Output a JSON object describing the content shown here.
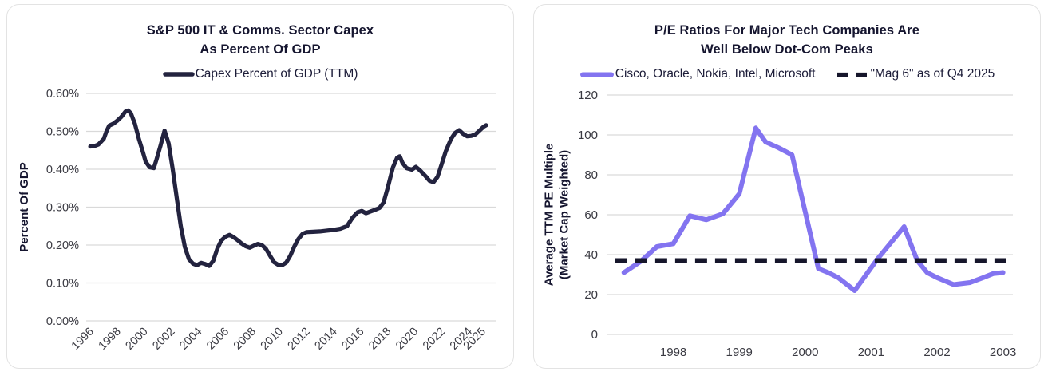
{
  "page": {
    "background": "#ffffff",
    "card_border": "#e3e3e3",
    "gridline_color": "#d9d9d9",
    "tick_text_color": "#3a3a42",
    "title_text_color": "#15152f"
  },
  "chart_data": [
    {
      "type": "line",
      "title": "S&P 500 IT & Comms. Sector Capex As Percent Of GDP",
      "title_lines": [
        "S&P 500 IT & Comms. Sector Capex",
        "As Percent Of GDP"
      ],
      "xlabel": "",
      "ylabel": "Percent Of GDP",
      "ylabel_lines": [
        "Percent Of GDP"
      ],
      "grid": "horizontal",
      "legend_position": "top-center",
      "xlim": [
        1995.7,
        2026.0
      ],
      "ylim": [
        0,
        0.6
      ],
      "yticks": [
        {
          "v": 0.0,
          "label": "0.00%"
        },
        {
          "v": 0.1,
          "label": "0.10%"
        },
        {
          "v": 0.2,
          "label": "0.20%"
        },
        {
          "v": 0.3,
          "label": "0.30%"
        },
        {
          "v": 0.4,
          "label": "0.40%"
        },
        {
          "v": 0.5,
          "label": "0.50%"
        },
        {
          "v": 0.6,
          "label": "0.60%"
        }
      ],
      "xticks": [
        1996,
        1998,
        2000,
        2002,
        2004,
        2006,
        2008,
        2010,
        2012,
        2014,
        2016,
        2018,
        2020,
        2022,
        2024,
        2025
      ],
      "series": [
        {
          "name": "Capex Percent of GDP (TTM)",
          "color": "#23233f",
          "dash": null,
          "points": [
            [
              1996.0,
              0.46
            ],
            [
              1996.3,
              0.461
            ],
            [
              1996.6,
              0.465
            ],
            [
              1997.0,
              0.48
            ],
            [
              1997.2,
              0.5
            ],
            [
              1997.4,
              0.515
            ],
            [
              1997.7,
              0.52
            ],
            [
              1998.0,
              0.528
            ],
            [
              1998.3,
              0.538
            ],
            [
              1998.6,
              0.552
            ],
            [
              1998.8,
              0.555
            ],
            [
              1999.0,
              0.548
            ],
            [
              1999.3,
              0.52
            ],
            [
              1999.6,
              0.48
            ],
            [
              1999.9,
              0.445
            ],
            [
              2000.1,
              0.42
            ],
            [
              2000.4,
              0.405
            ],
            [
              2000.7,
              0.403
            ],
            [
              2000.9,
              0.425
            ],
            [
              2001.2,
              0.462
            ],
            [
              2001.5,
              0.502
            ],
            [
              2001.8,
              0.468
            ],
            [
              2002.1,
              0.4
            ],
            [
              2002.4,
              0.325
            ],
            [
              2002.7,
              0.25
            ],
            [
              2003.0,
              0.195
            ],
            [
              2003.3,
              0.163
            ],
            [
              2003.6,
              0.151
            ],
            [
              2003.9,
              0.147
            ],
            [
              2004.2,
              0.153
            ],
            [
              2004.5,
              0.15
            ],
            [
              2004.8,
              0.145
            ],
            [
              2005.1,
              0.158
            ],
            [
              2005.4,
              0.19
            ],
            [
              2005.7,
              0.212
            ],
            [
              2006.0,
              0.222
            ],
            [
              2006.3,
              0.227
            ],
            [
              2006.6,
              0.221
            ],
            [
              2006.9,
              0.213
            ],
            [
              2007.2,
              0.204
            ],
            [
              2007.5,
              0.197
            ],
            [
              2007.8,
              0.193
            ],
            [
              2008.1,
              0.198
            ],
            [
              2008.4,
              0.203
            ],
            [
              2008.7,
              0.2
            ],
            [
              2009.0,
              0.19
            ],
            [
              2009.3,
              0.172
            ],
            [
              2009.6,
              0.155
            ],
            [
              2009.9,
              0.148
            ],
            [
              2010.2,
              0.147
            ],
            [
              2010.5,
              0.154
            ],
            [
              2010.8,
              0.172
            ],
            [
              2011.1,
              0.196
            ],
            [
              2011.4,
              0.216
            ],
            [
              2011.7,
              0.229
            ],
            [
              2012.0,
              0.234
            ],
            [
              2012.5,
              0.235
            ],
            [
              2013.0,
              0.236
            ],
            [
              2013.5,
              0.238
            ],
            [
              2014.0,
              0.24
            ],
            [
              2014.5,
              0.243
            ],
            [
              2015.0,
              0.25
            ],
            [
              2015.4,
              0.272
            ],
            [
              2015.8,
              0.287
            ],
            [
              2016.1,
              0.29
            ],
            [
              2016.4,
              0.284
            ],
            [
              2016.7,
              0.288
            ],
            [
              2017.0,
              0.292
            ],
            [
              2017.4,
              0.298
            ],
            [
              2017.7,
              0.312
            ],
            [
              2018.0,
              0.35
            ],
            [
              2018.4,
              0.405
            ],
            [
              2018.7,
              0.43
            ],
            [
              2018.9,
              0.434
            ],
            [
              2019.1,
              0.417
            ],
            [
              2019.4,
              0.403
            ],
            [
              2019.8,
              0.399
            ],
            [
              2020.1,
              0.406
            ],
            [
              2020.4,
              0.397
            ],
            [
              2020.8,
              0.382
            ],
            [
              2021.1,
              0.37
            ],
            [
              2021.4,
              0.366
            ],
            [
              2021.7,
              0.38
            ],
            [
              2022.0,
              0.413
            ],
            [
              2022.3,
              0.447
            ],
            [
              2022.7,
              0.48
            ],
            [
              2023.0,
              0.496
            ],
            [
              2023.3,
              0.503
            ],
            [
              2023.6,
              0.493
            ],
            [
              2023.9,
              0.487
            ],
            [
              2024.2,
              0.488
            ],
            [
              2024.5,
              0.492
            ],
            [
              2024.8,
              0.502
            ],
            [
              2025.1,
              0.512
            ],
            [
              2025.3,
              0.516
            ]
          ]
        }
      ]
    },
    {
      "type": "line",
      "title": "P/E Ratios For Major Tech Companies Are Well Below Dot-Com Peaks",
      "title_lines": [
        "P/E Ratios For Major Tech Companies Are",
        "Well Below Dot-Com Peaks"
      ],
      "xlabel": "",
      "ylabel": "Average TTM PE Multiple (Market Cap Weighted)",
      "ylabel_lines": [
        "Average TTM PE Multiple",
        "(Market Cap Weighted)"
      ],
      "grid": "horizontal",
      "legend_position": "top-center",
      "xlim": [
        1997.0,
        2003.15
      ],
      "ylim": [
        0,
        120
      ],
      "yticks": [
        {
          "v": 0,
          "label": "0"
        },
        {
          "v": 20,
          "label": "20"
        },
        {
          "v": 40,
          "label": "40"
        },
        {
          "v": 60,
          "label": "60"
        },
        {
          "v": 80,
          "label": "80"
        },
        {
          "v": 100,
          "label": "100"
        },
        {
          "v": 120,
          "label": "120"
        }
      ],
      "xticks": [
        1998,
        1999,
        2000,
        2001,
        2002,
        2003
      ],
      "series": [
        {
          "name": "Cisco, Oracle, Nokia, Intel, Microsoft",
          "color": "#8374f0",
          "dash": null,
          "points": [
            [
              1997.25,
              31
            ],
            [
              1997.5,
              36.5
            ],
            [
              1997.75,
              44
            ],
            [
              1998.0,
              45.5
            ],
            [
              1998.25,
              59.5
            ],
            [
              1998.5,
              57.5
            ],
            [
              1998.75,
              60.5
            ],
            [
              1999.0,
              70.5
            ],
            [
              1999.25,
              103.5
            ],
            [
              1999.4,
              96.5
            ],
            [
              1999.6,
              93.5
            ],
            [
              1999.8,
              90
            ],
            [
              2000.2,
              33
            ],
            [
              2000.35,
              31
            ],
            [
              2000.5,
              28.5
            ],
            [
              2000.75,
              22
            ],
            [
              2001.1,
              38
            ],
            [
              2001.5,
              54
            ],
            [
              2001.7,
              37
            ],
            [
              2001.85,
              31
            ],
            [
              2002.0,
              28.5
            ],
            [
              2002.25,
              25
            ],
            [
              2002.5,
              26
            ],
            [
              2002.7,
              28.5
            ],
            [
              2002.85,
              30.5
            ],
            [
              2003.0,
              31
            ]
          ]
        },
        {
          "name": "\"Mag 6\" as of Q4 2025",
          "color": "#16162b",
          "dash": "15 10",
          "points": [
            [
              1997.12,
              37
            ],
            [
              2003.1,
              37
            ]
          ]
        }
      ]
    }
  ]
}
